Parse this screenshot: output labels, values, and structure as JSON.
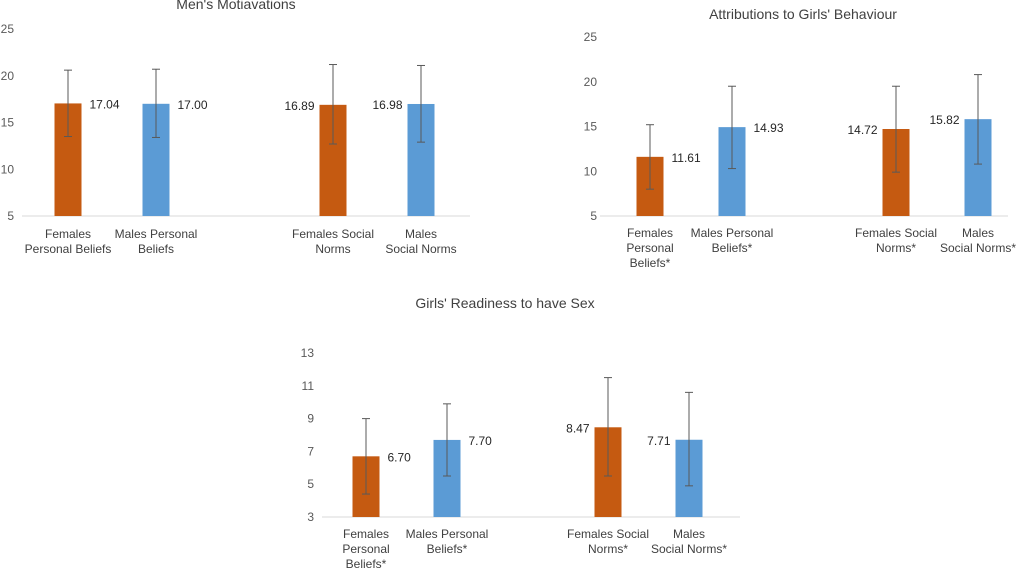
{
  "colors": {
    "female": "#c55a11",
    "male": "#5b9bd5",
    "axis": "#d9d9d9",
    "error": "#595959"
  },
  "chart_data": [
    {
      "type": "bar",
      "title": "Men's Motiavations",
      "ylim": [
        5,
        25
      ],
      "yticks": [
        "5",
        "10",
        "15",
        "20",
        "25"
      ],
      "grid": false,
      "categories": [
        [
          "Females",
          "Personal Beliefs"
        ],
        [
          "Males Personal",
          "Beliefs"
        ],
        [
          "Females Social",
          "Norms"
        ],
        [
          "Males",
          "Social Norms"
        ]
      ],
      "values": [
        17.04,
        17.0,
        16.89,
        16.98
      ],
      "labels": [
        "17.04",
        "17.00",
        "16.89",
        "16.98"
      ],
      "error_low": [
        13.5,
        13.4,
        12.7,
        12.9
      ],
      "error_high": [
        20.6,
        20.7,
        21.2,
        21.1
      ],
      "bar_colors": [
        "female",
        "male",
        "female",
        "male"
      ]
    },
    {
      "type": "bar",
      "title": "Attributions to Girls' Behaviour",
      "ylim": [
        5,
        25
      ],
      "yticks": [
        "5",
        "10",
        "15",
        "20",
        "25"
      ],
      "grid": false,
      "categories": [
        [
          "Females",
          "Personal",
          "Beliefs*"
        ],
        [
          "Males Personal",
          "Beliefs*"
        ],
        [
          "Females Social",
          "Norms*"
        ],
        [
          "Males",
          "Social Norms*"
        ]
      ],
      "values": [
        11.61,
        14.93,
        14.72,
        15.82
      ],
      "labels": [
        "11.61",
        "14.93",
        "14.72",
        "15.82"
      ],
      "error_low": [
        8.0,
        10.3,
        9.9,
        10.8
      ],
      "error_high": [
        15.2,
        19.5,
        19.5,
        20.8
      ],
      "bar_colors": [
        "female",
        "male",
        "female",
        "male"
      ]
    },
    {
      "type": "bar",
      "title": "Girls' Readiness to have Sex",
      "ylim": [
        3,
        13
      ],
      "yticks": [
        "3",
        "5",
        "7",
        "9",
        "11",
        "13"
      ],
      "grid": false,
      "categories": [
        [
          "Females",
          "Personal",
          "Beliefs*"
        ],
        [
          "Males Personal",
          "Beliefs*"
        ],
        [
          "Females Social",
          "Norms*"
        ],
        [
          "Males",
          "Social Norms*"
        ]
      ],
      "values": [
        6.7,
        7.7,
        8.47,
        7.71
      ],
      "labels": [
        "6.70",
        "7.70",
        "8.47",
        "7.71"
      ],
      "error_low": [
        4.4,
        5.5,
        5.5,
        4.9
      ],
      "error_high": [
        9.0,
        9.9,
        11.5,
        10.6
      ],
      "bar_colors": [
        "female",
        "male",
        "female",
        "male"
      ]
    }
  ]
}
